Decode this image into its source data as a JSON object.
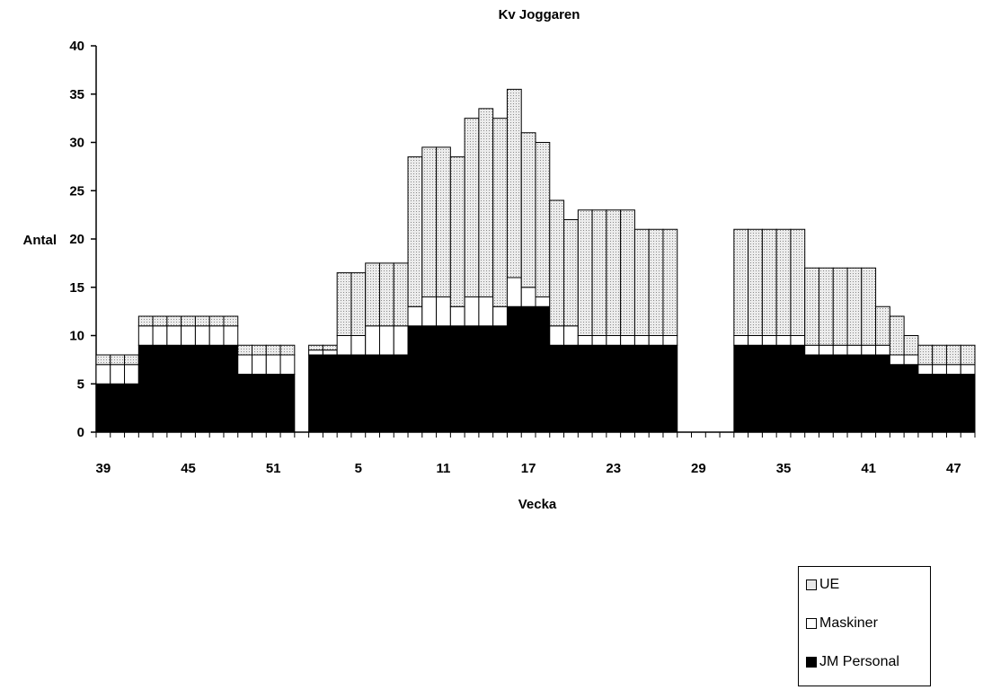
{
  "chart_data": {
    "type": "bar",
    "stacked": true,
    "title": "Kv Joggaren",
    "xlabel": "Vecka",
    "ylabel": "Antal",
    "ylim": [
      0,
      40
    ],
    "yticks": [
      0,
      5,
      10,
      15,
      20,
      25,
      30,
      35,
      40
    ],
    "xtick_labels": [
      "39",
      "45",
      "51",
      "5",
      "11",
      "17",
      "23",
      "29",
      "35",
      "41",
      "47"
    ],
    "legend_position": "bottom-right",
    "categories": [
      "39",
      "40",
      "41",
      "42",
      "43",
      "44",
      "45",
      "46",
      "47",
      "48",
      "49",
      "50",
      "51",
      "52",
      "1",
      "2",
      "3",
      "4",
      "5",
      "6",
      "7",
      "8",
      "9",
      "10",
      "11",
      "12",
      "13",
      "14",
      "15",
      "16",
      "17",
      "18",
      "19",
      "20",
      "21",
      "22",
      "23",
      "24",
      "25",
      "26",
      "27",
      "28",
      "29",
      "30",
      "31",
      "32",
      "33",
      "34",
      "35",
      "36",
      "37",
      "38",
      "39",
      "40",
      "41",
      "42",
      "43",
      "44",
      "45",
      "46",
      "47",
      "48"
    ],
    "series": [
      {
        "name": "JM Personal",
        "color": "#000000",
        "values": [
          5,
          5,
          5,
          9,
          9,
          9,
          9,
          9,
          9,
          9,
          6,
          6,
          6,
          6,
          null,
          8,
          8,
          8,
          8,
          8,
          8,
          8,
          11,
          11,
          11,
          11,
          11,
          11,
          11,
          13,
          13,
          13,
          9,
          9,
          9,
          9,
          9,
          9,
          9,
          9,
          9,
          null,
          null,
          null,
          null,
          9,
          9,
          9,
          9,
          9,
          8,
          8,
          8,
          8,
          8,
          8,
          7,
          7,
          6,
          6,
          6,
          6
        ]
      },
      {
        "name": "Maskiner",
        "color": "#ffffff",
        "values": [
          2,
          2,
          2,
          2,
          2,
          2,
          2,
          2,
          2,
          2,
          2,
          2,
          2,
          2,
          null,
          0.5,
          0.5,
          2,
          2,
          3,
          3,
          3,
          2,
          3,
          3,
          2,
          3,
          3,
          2,
          3,
          2,
          1,
          2,
          2,
          1,
          1,
          1,
          1,
          1,
          1,
          1,
          null,
          null,
          null,
          null,
          1,
          1,
          1,
          1,
          1,
          1,
          1,
          1,
          1,
          1,
          1,
          1,
          1,
          1,
          1,
          1,
          1
        ]
      },
      {
        "name": "UE",
        "color": "#e8e8e8",
        "values": [
          1,
          1,
          1,
          1,
          1,
          1,
          1,
          1,
          1,
          1,
          1,
          1,
          1,
          1,
          null,
          0.5,
          0.5,
          6.5,
          6.5,
          6.5,
          6.5,
          6.5,
          15.5,
          15.5,
          15.5,
          15.5,
          18.5,
          19.5,
          19.5,
          19.5,
          16,
          16,
          13,
          11,
          13,
          13,
          13,
          13,
          11,
          11,
          11,
          null,
          null,
          null,
          null,
          11,
          11,
          11,
          11,
          11,
          8,
          8,
          8,
          8,
          8,
          4,
          4,
          2,
          2,
          2,
          2,
          2
        ]
      }
    ]
  }
}
